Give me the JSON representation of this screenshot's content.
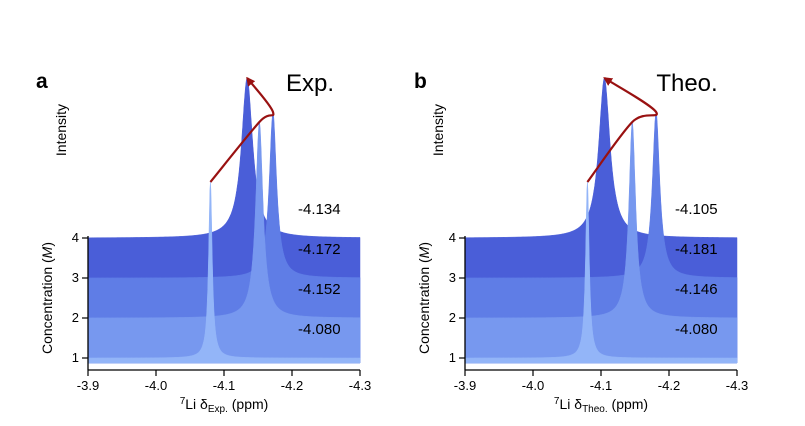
{
  "chart_data": {
    "type": "area",
    "subtype": "stacked-waterfall-nmr-spectra",
    "background": "#ffffff",
    "axis_color": "#000000",
    "text_color": "#000000",
    "arrow_color": "#991111",
    "x_range": [
      -3.9,
      -4.3
    ],
    "x_ticks": [
      "-3.9",
      "-4.0",
      "-4.1",
      "-4.2",
      "-4.3"
    ],
    "x_tick_values": [
      -3.9,
      -4.0,
      -4.1,
      -4.2,
      -4.3
    ],
    "concentration_ticks": [
      1,
      2,
      3,
      4
    ],
    "ylabels": {
      "intensity": "Intensity",
      "concentration_pre": "Concentration (",
      "concentration_italic": "M",
      "concentration_post": ")"
    },
    "panels": [
      {
        "letter": "a",
        "title": "Exp.",
        "x_label": {
          "sup": "7",
          "main": "Li δ",
          "sub": "Exp.",
          "rest": " (ppm)"
        },
        "series": [
          {
            "concentration_M": 1,
            "delta_ppm": -4.08,
            "delta_label": "-4.080",
            "rel_intensity": 0.88,
            "hwhm_ppm": 0.0032,
            "color": "#93b5f8"
          },
          {
            "concentration_M": 2,
            "delta_ppm": -4.152,
            "delta_label": "-4.152",
            "rel_intensity": 0.98,
            "hwhm_ppm": 0.0065,
            "color": "#7798ef"
          },
          {
            "concentration_M": 3,
            "delta_ppm": -4.172,
            "delta_label": "-4.172",
            "rel_intensity": 0.83,
            "hwhm_ppm": 0.0065,
            "color": "#5f7de6"
          },
          {
            "concentration_M": 4,
            "delta_ppm": -4.134,
            "delta_label": "-4.134",
            "rel_intensity": 0.8,
            "hwhm_ppm": 0.01,
            "color": "#4a5ed8"
          }
        ]
      },
      {
        "letter": "b",
        "title": "Theo.",
        "x_label": {
          "sup": "7",
          "main": "Li δ",
          "sub": "Theo.",
          "rest": " (ppm)"
        },
        "series": [
          {
            "concentration_M": 1,
            "delta_ppm": -4.08,
            "delta_label": "-4.080",
            "rel_intensity": 0.88,
            "hwhm_ppm": 0.0032,
            "color": "#93b5f8"
          },
          {
            "concentration_M": 2,
            "delta_ppm": -4.146,
            "delta_label": "-4.146",
            "rel_intensity": 0.98,
            "hwhm_ppm": 0.006,
            "color": "#7798ef"
          },
          {
            "concentration_M": 3,
            "delta_ppm": -4.181,
            "delta_label": "-4.181",
            "rel_intensity": 0.83,
            "hwhm_ppm": 0.0065,
            "color": "#5f7de6"
          },
          {
            "concentration_M": 4,
            "delta_ppm": -4.105,
            "delta_label": "-4.105",
            "rel_intensity": 0.8,
            "hwhm_ppm": 0.01,
            "color": "#4a5ed8"
          }
        ]
      }
    ]
  }
}
